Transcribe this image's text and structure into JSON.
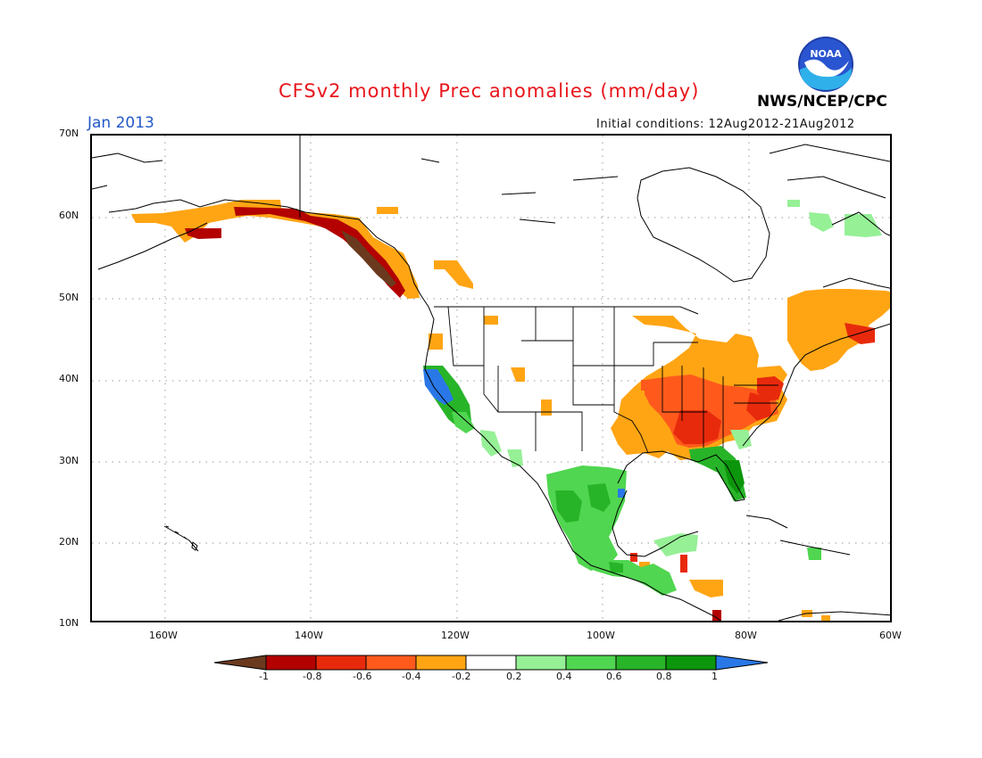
{
  "header": {
    "title": "CFSv2 monthly Prec anomalies (mm/day)",
    "month": "Jan 2013",
    "initial_conditions": "Initial conditions: 12Aug2012-21Aug2012",
    "agency": "NWS/NCEP/CPC",
    "logo_text": "NOAA"
  },
  "axes": {
    "lat_labels": [
      "70N",
      "60N",
      "50N",
      "40N",
      "30N",
      "20N",
      "10N"
    ],
    "lon_labels": [
      "160W",
      "140W",
      "120W",
      "100W",
      "80W",
      "60W"
    ]
  },
  "colorbar": {
    "labels": [
      "-1",
      "-0.8",
      "-0.6",
      "-0.4",
      "-0.2",
      "0.2",
      "0.4",
      "0.6",
      "0.8",
      "1"
    ],
    "colors": [
      "#6b3a1e",
      "#b30000",
      "#e82a0c",
      "#ff5a1c",
      "#ffa514",
      "#ffffff",
      "#96f096",
      "#50d650",
      "#28b428",
      "#0c960c",
      "#2a78e8"
    ]
  },
  "map": {
    "region": "North America",
    "lat_range": [
      10,
      70
    ],
    "lon_range": [
      -170,
      -60
    ],
    "grid": true
  }
}
